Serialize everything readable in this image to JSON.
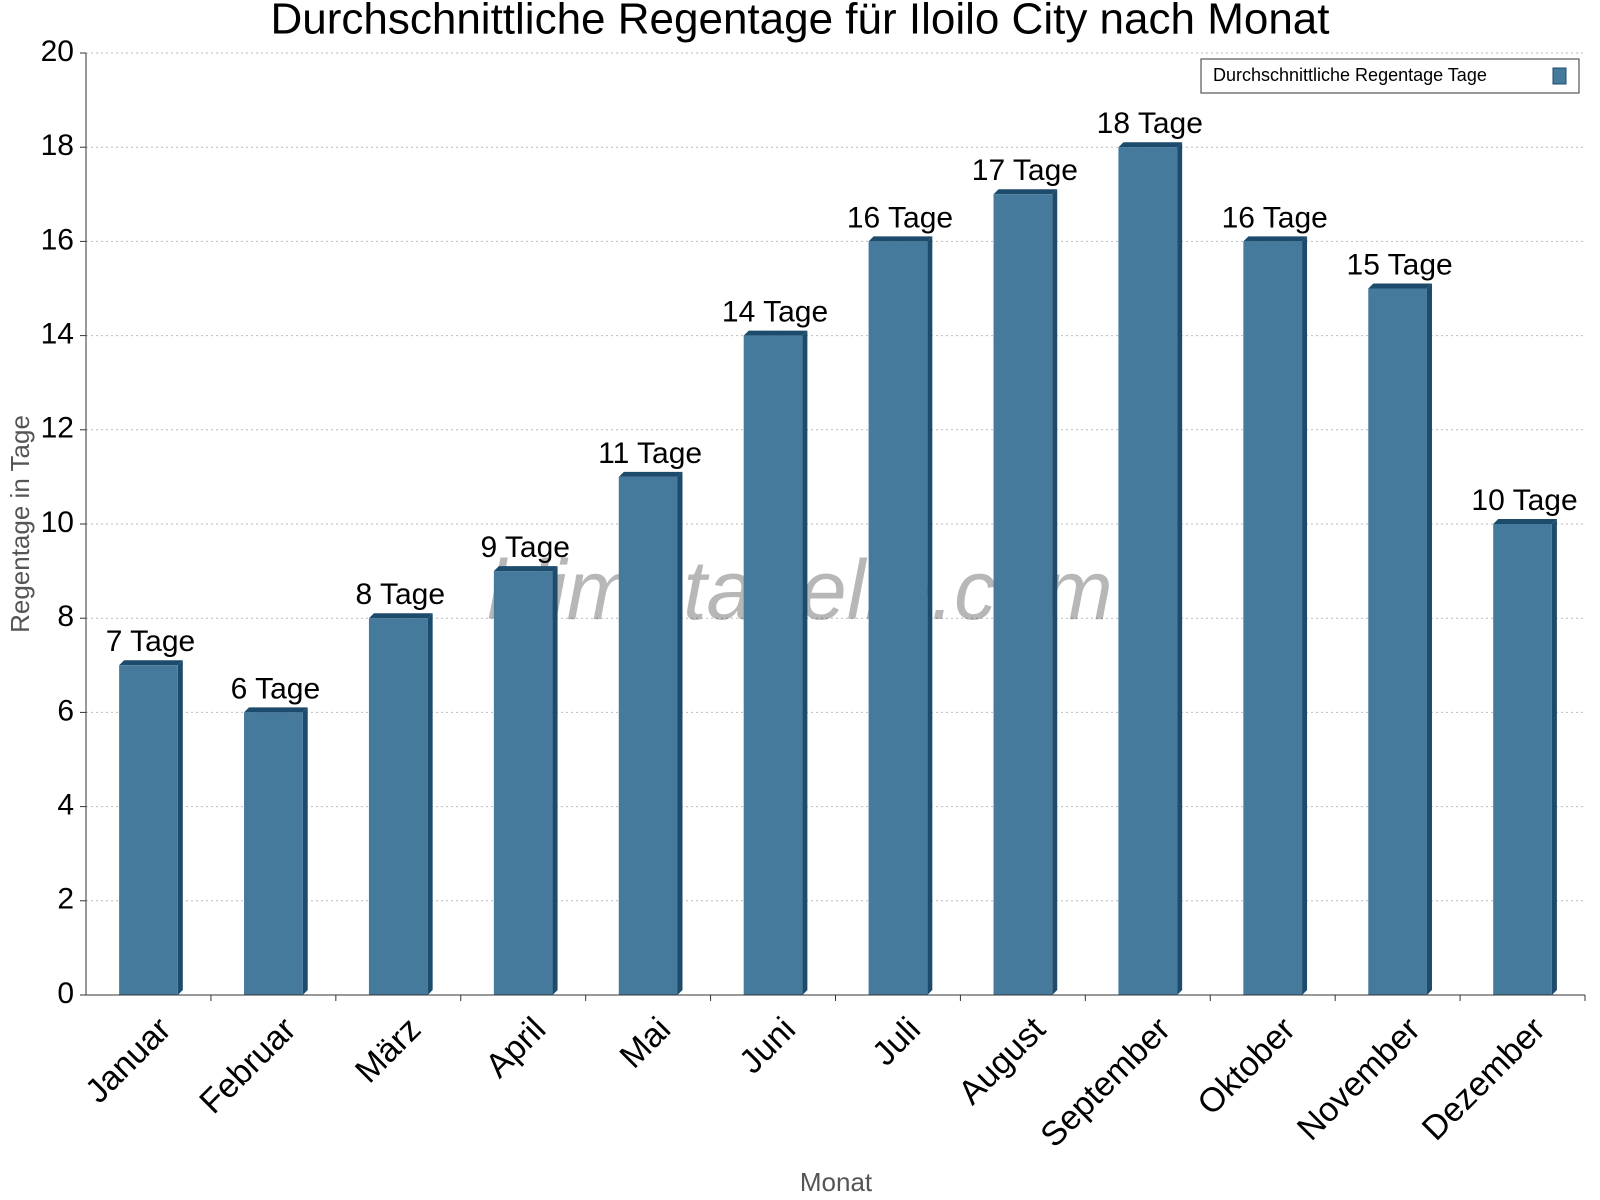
{
  "chart_data": {
    "type": "bar",
    "title": "Durchschnittliche Regentage für Iloilo City nach Monat",
    "x_label": "Monat",
    "y_label": "Regentage in Tage",
    "watermark": "klimatabelle.com",
    "categories": [
      "Januar",
      "Februar",
      "März",
      "April",
      "Mai",
      "Juni",
      "Juli",
      "August",
      "September",
      "Oktober",
      "November",
      "Dezember"
    ],
    "series": [
      {
        "name": "Durchschnittliche Regentage Tage",
        "color": "#467a9c",
        "values": [
          7,
          6,
          8,
          9,
          11,
          14,
          16,
          17,
          18,
          16,
          15,
          10
        ],
        "value_labels": [
          "7 Tage",
          "6 Tage",
          "8 Tage",
          "9 Tage",
          "11 Tage",
          "14 Tage",
          "16 Tage",
          "17 Tage",
          "18 Tage",
          "16 Tage",
          "15 Tage",
          "10 Tage"
        ]
      }
    ],
    "ylim": [
      0,
      20
    ],
    "yticks": [
      0,
      2,
      4,
      6,
      8,
      10,
      12,
      14,
      16,
      18,
      20
    ],
    "grid": true,
    "legend": "upper right"
  }
}
